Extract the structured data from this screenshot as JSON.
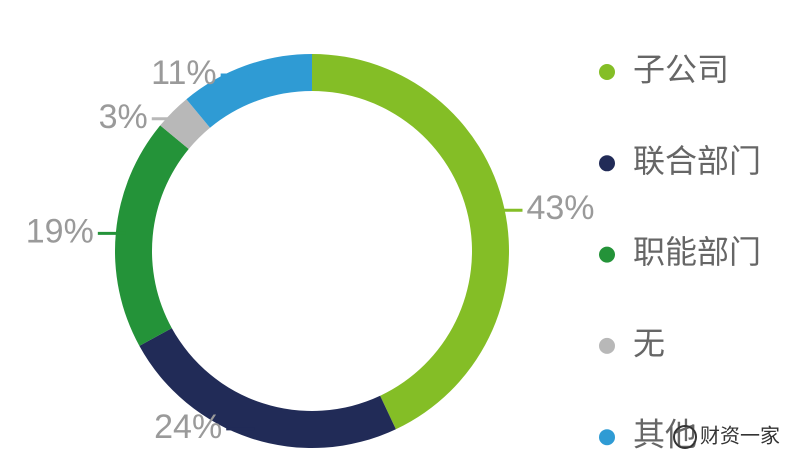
{
  "chart_data": {
    "type": "donut",
    "categories": [
      "子公司",
      "联合部门",
      "职能部门",
      "无",
      "其他"
    ],
    "values": [
      43,
      24,
      19,
      3,
      11
    ],
    "value_labels": [
      "43%",
      "24%",
      "19%",
      "3%",
      "11%"
    ],
    "colors": [
      "#84be26",
      "#212b57",
      "#249339",
      "#b8b8b8",
      "#2f9bd4"
    ],
    "legend": "right"
  },
  "watermark": "财资一家"
}
